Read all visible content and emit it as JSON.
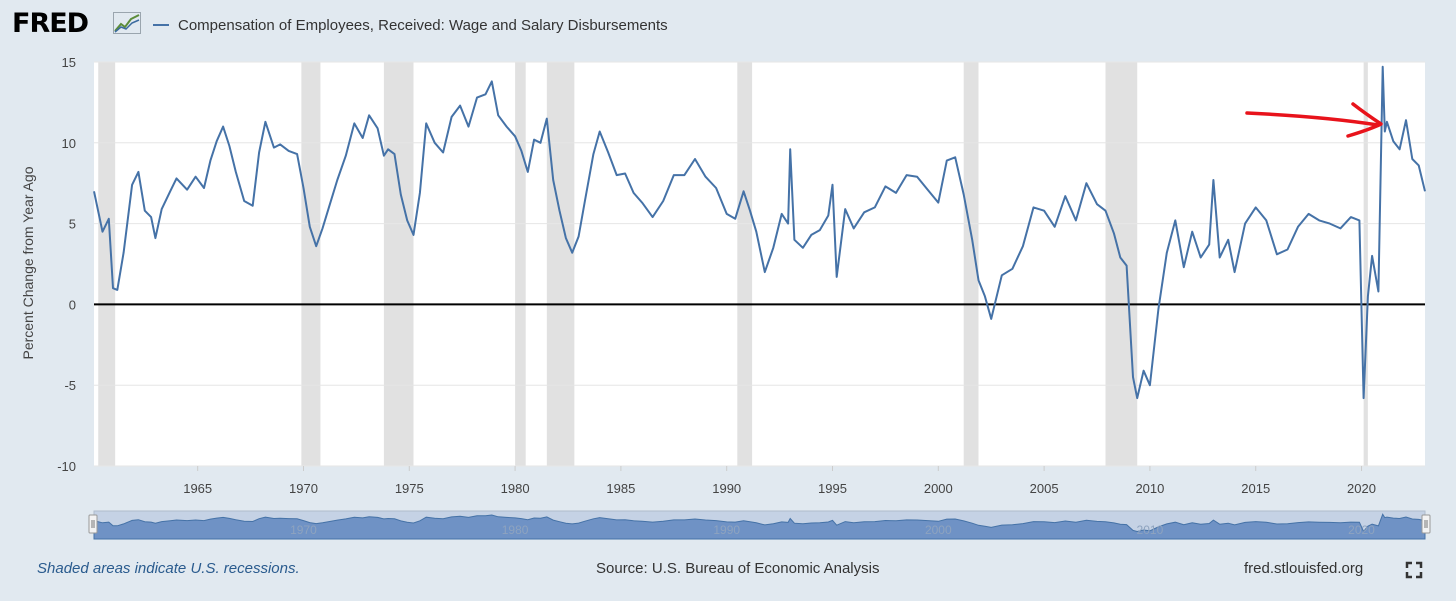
{
  "header": {
    "logo_text": "FRED",
    "logo_icon": "fred-chart-icon",
    "legend_label": "Compensation of Employees, Received: Wage and Salary Disbursements"
  },
  "footer": {
    "recession_note": "Shaded areas indicate U.S. recessions.",
    "source": "Source: U.S. Bureau of Economic Analysis",
    "site": "fred.stlouisfed.org",
    "expand_icon": "fullscreen-icon"
  },
  "colors": {
    "line": "#4572a7",
    "recession": "#e1e1e1",
    "background": "#e1e9f0",
    "annotation_arrow": "#e8131b"
  },
  "chart_data": {
    "type": "line",
    "title": "",
    "ylabel": "Percent Change from Year Ago",
    "xlabel": "",
    "xlim": [
      1960.1,
      2023.0
    ],
    "ylim": [
      -10,
      15
    ],
    "yticks": [
      15,
      10,
      5,
      0,
      -5,
      -10
    ],
    "xticks": [
      1965,
      1970,
      1975,
      1980,
      1985,
      1990,
      1995,
      2000,
      2005,
      2010,
      2015,
      2020
    ],
    "navigator_labels": [
      1970,
      1980,
      1990,
      2000,
      2010,
      2020
    ],
    "recessions": [
      [
        1960.3,
        1961.1
      ],
      [
        1969.9,
        1970.8
      ],
      [
        1973.8,
        1975.2
      ],
      [
        1980.0,
        1980.5
      ],
      [
        1981.5,
        1982.8
      ],
      [
        1990.5,
        1991.2
      ],
      [
        2001.2,
        2001.9
      ],
      [
        2007.9,
        2009.4
      ],
      [
        2020.1,
        2020.3
      ]
    ],
    "annotation": "red hand-drawn arrow pointing at the 2021 peak",
    "series": [
      {
        "name": "Compensation of Employees, Received: Wage and Salary Disbursements",
        "x": [
          1960.1,
          1960.5,
          1960.8,
          1961.0,
          1961.2,
          1961.5,
          1961.9,
          1962.2,
          1962.5,
          1962.8,
          1963.0,
          1963.3,
          1963.7,
          1964.0,
          1964.5,
          1964.9,
          1965.3,
          1965.6,
          1965.9,
          1966.2,
          1966.5,
          1966.8,
          1967.2,
          1967.6,
          1967.9,
          1968.2,
          1968.6,
          1968.9,
          1969.3,
          1969.7,
          1970.0,
          1970.3,
          1970.6,
          1970.9,
          1971.2,
          1971.6,
          1972.0,
          1972.4,
          1972.8,
          1973.1,
          1973.5,
          1973.8,
          1974.0,
          1974.3,
          1974.6,
          1974.9,
          1975.2,
          1975.5,
          1975.8,
          1976.2,
          1976.6,
          1977.0,
          1977.4,
          1977.8,
          1978.2,
          1978.6,
          1978.9,
          1979.2,
          1979.6,
          1980.0,
          1980.3,
          1980.6,
          1980.9,
          1981.2,
          1981.5,
          1981.8,
          1982.1,
          1982.4,
          1982.7,
          1983.0,
          1983.3,
          1983.7,
          1984.0,
          1984.4,
          1984.8,
          1985.2,
          1985.6,
          1986.0,
          1986.5,
          1987.0,
          1987.5,
          1988.0,
          1988.5,
          1989.0,
          1989.5,
          1990.0,
          1990.4,
          1990.8,
          1991.1,
          1991.4,
          1991.8,
          1992.2,
          1992.6,
          1992.9,
          1993.0,
          1993.2,
          1993.6,
          1994.0,
          1994.4,
          1994.8,
          1995.0,
          1995.2,
          1995.6,
          1996.0,
          1996.5,
          1997.0,
          1997.5,
          1998.0,
          1998.5,
          1999.0,
          1999.5,
          2000.0,
          2000.4,
          2000.8,
          2001.2,
          2001.6,
          2001.9,
          2002.2,
          2002.5,
          2003.0,
          2003.5,
          2004.0,
          2004.5,
          2005.0,
          2005.5,
          2006.0,
          2006.5,
          2007.0,
          2007.5,
          2007.9,
          2008.3,
          2008.6,
          2008.9,
          2009.2,
          2009.4,
          2009.7,
          2010.0,
          2010.4,
          2010.8,
          2011.2,
          2011.6,
          2012.0,
          2012.4,
          2012.8,
          2013.0,
          2013.3,
          2013.7,
          2014.0,
          2014.5,
          2015.0,
          2015.5,
          2016.0,
          2016.5,
          2017.0,
          2017.5,
          2018.0,
          2018.5,
          2019.0,
          2019.5,
          2019.9,
          2020.1,
          2020.3,
          2020.5,
          2020.8,
          2021.0,
          2021.1,
          2021.2,
          2021.5,
          2021.8,
          2022.1,
          2022.4,
          2022.7,
          2023.0
        ],
        "values": [
          7.0,
          4.5,
          5.3,
          1.0,
          0.9,
          3.2,
          7.4,
          8.2,
          5.8,
          5.4,
          4.1,
          5.9,
          7.0,
          7.8,
          7.1,
          7.9,
          7.2,
          8.9,
          10.1,
          11.0,
          9.8,
          8.2,
          6.4,
          6.1,
          9.4,
          11.3,
          9.7,
          9.9,
          9.5,
          9.3,
          7.2,
          4.8,
          3.6,
          4.7,
          6.0,
          7.7,
          9.2,
          11.2,
          10.3,
          11.7,
          10.9,
          9.2,
          9.6,
          9.3,
          6.8,
          5.2,
          4.3,
          6.9,
          11.2,
          10.0,
          9.4,
          11.6,
          12.3,
          11.0,
          12.8,
          13.0,
          13.8,
          11.7,
          11.0,
          10.4,
          9.5,
          8.2,
          10.2,
          10.0,
          11.5,
          7.7,
          5.8,
          4.1,
          3.2,
          4.2,
          6.4,
          9.3,
          10.7,
          9.4,
          8.0,
          8.1,
          6.9,
          6.3,
          5.4,
          6.4,
          8.0,
          8.0,
          9.0,
          7.9,
          7.2,
          5.6,
          5.3,
          7.0,
          5.8,
          4.5,
          2.0,
          3.5,
          5.6,
          5.0,
          9.6,
          4.0,
          3.5,
          4.3,
          4.6,
          5.5,
          7.4,
          1.7,
          5.9,
          4.7,
          5.7,
          6.0,
          7.3,
          6.9,
          8.0,
          7.9,
          7.1,
          6.3,
          8.9,
          9.1,
          6.8,
          4.0,
          1.5,
          0.5,
          -0.9,
          1.8,
          2.2,
          3.6,
          6.0,
          5.8,
          4.8,
          6.7,
          5.2,
          7.5,
          6.2,
          5.8,
          4.4,
          2.9,
          2.4,
          -4.5,
          -5.8,
          -4.1,
          -5.0,
          -0.3,
          3.2,
          5.2,
          2.3,
          4.5,
          2.9,
          3.7,
          7.7,
          2.9,
          4.0,
          2.0,
          5.0,
          6.0,
          5.2,
          3.1,
          3.4,
          4.8,
          5.6,
          5.2,
          5.0,
          4.7,
          5.4,
          5.2,
          -5.8,
          0.5,
          3.0,
          0.8,
          14.7,
          10.7,
          11.3,
          10.1,
          9.6,
          11.4,
          9.0,
          8.6,
          7.0
        ]
      }
    ]
  }
}
